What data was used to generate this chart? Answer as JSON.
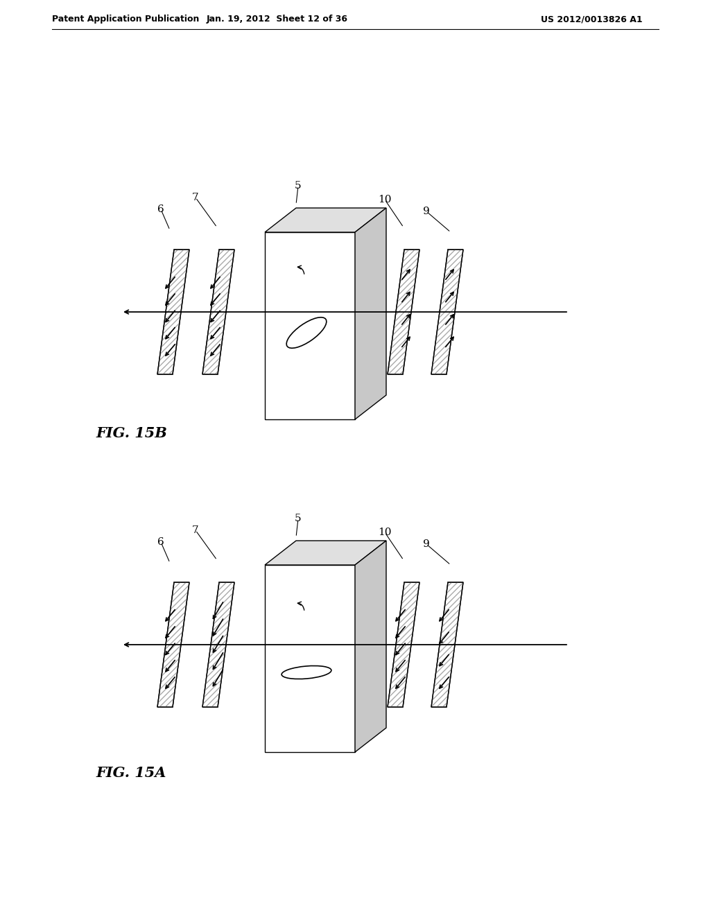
{
  "bg_color": "#ffffff",
  "header_left": "Patent Application Publication",
  "header_mid": "Jan. 19, 2012  Sheet 12 of 36",
  "header_right": "US 2012/0013826 A1",
  "fig_b_label": "FIG. 15B",
  "fig_a_label": "FIG. 15A"
}
